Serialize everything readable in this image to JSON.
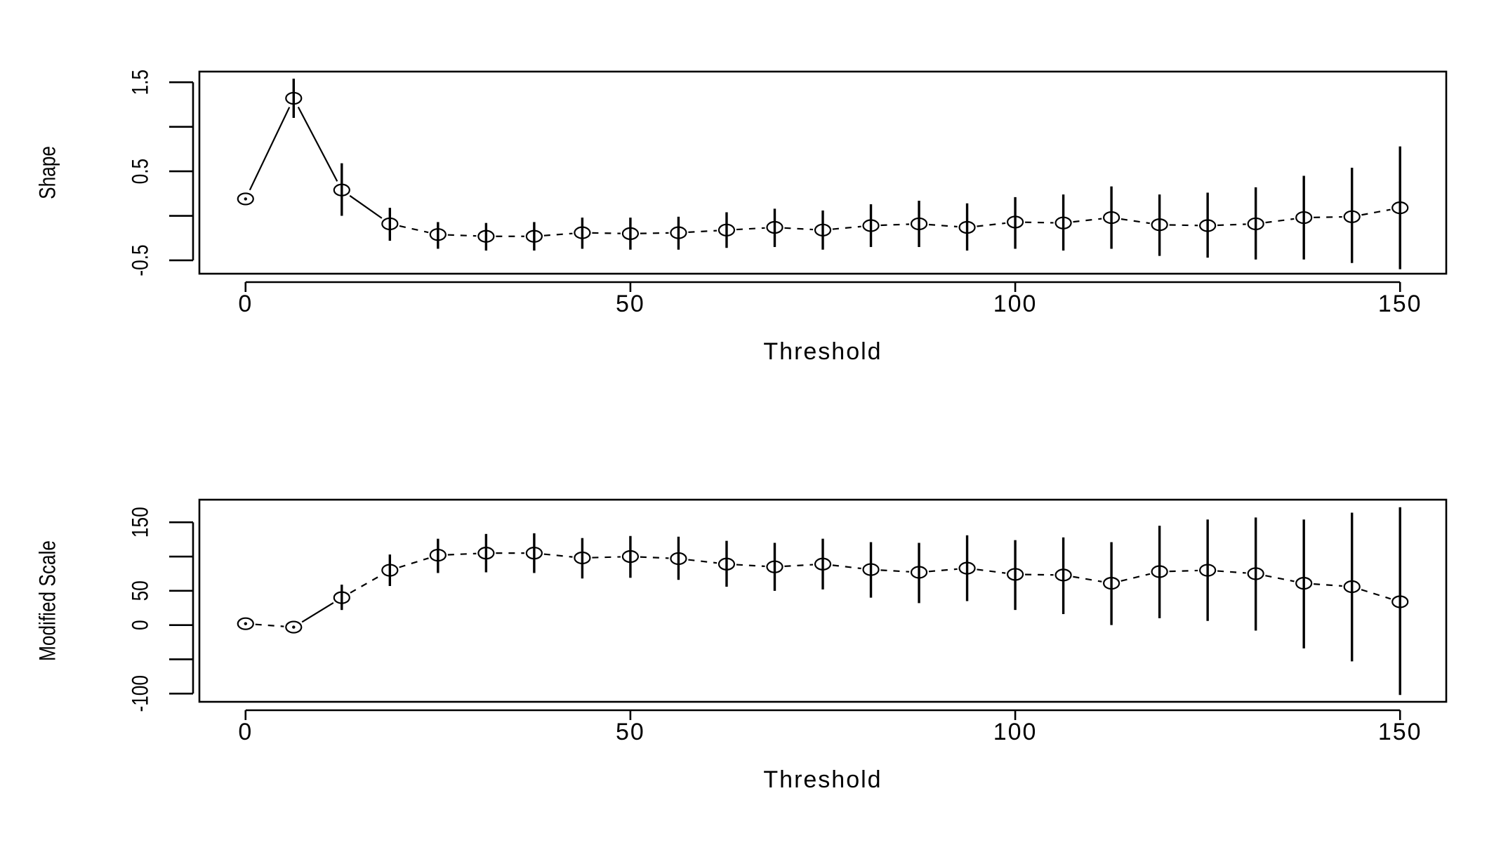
{
  "chart_data": [
    {
      "type": "scatter",
      "ylabel": "Shape",
      "xlabel": "Threshold",
      "xlim": [
        -6,
        156
      ],
      "ylim": [
        -0.65,
        1.62
      ],
      "xticks": [
        0,
        50,
        100,
        150
      ],
      "xtick_labels": [
        "0",
        "50",
        "100",
        "150"
      ],
      "yticks": [
        -0.5,
        0,
        0.5,
        1.0,
        1.5
      ],
      "ytick_labels": [
        "-0.5",
        "",
        "0.5",
        "",
        "1.5"
      ],
      "series": [
        {
          "x": [
            0,
            6.25,
            12.5,
            18.75,
            25,
            31.25,
            37.5,
            43.75,
            50,
            56.25,
            62.5,
            68.75,
            75,
            81.25,
            87.5,
            93.75,
            100,
            106.25,
            112.5,
            118.75,
            125,
            131.25,
            137.5,
            143.75,
            150
          ],
          "y": [
            0.19,
            1.32,
            0.29,
            -0.09,
            -0.21,
            -0.23,
            -0.23,
            -0.19,
            -0.2,
            -0.19,
            -0.16,
            -0.13,
            -0.16,
            -0.11,
            -0.09,
            -0.13,
            -0.07,
            -0.08,
            -0.02,
            -0.1,
            -0.11,
            -0.09,
            -0.02,
            -0.01,
            0.09
          ],
          "lower": [
            0.19,
            1.1,
            0.0,
            -0.28,
            -0.37,
            -0.39,
            -0.39,
            -0.37,
            -0.38,
            -0.38,
            -0.36,
            -0.35,
            -0.38,
            -0.35,
            -0.35,
            -0.39,
            -0.37,
            -0.39,
            -0.37,
            -0.45,
            -0.47,
            -0.49,
            -0.49,
            -0.53,
            -0.6
          ],
          "upper": [
            0.19,
            1.54,
            0.59,
            0.09,
            -0.07,
            -0.08,
            -0.07,
            -0.02,
            -0.02,
            -0.01,
            0.04,
            0.08,
            0.06,
            0.13,
            0.17,
            0.14,
            0.21,
            0.24,
            0.33,
            0.24,
            0.26,
            0.32,
            0.45,
            0.54,
            0.78
          ]
        }
      ]
    },
    {
      "type": "scatter",
      "ylabel": "Modified Scale",
      "xlabel": "Threshold",
      "xlim": [
        -6,
        156
      ],
      "ylim": [
        -112,
        183
      ],
      "xticks": [
        0,
        50,
        100,
        150
      ],
      "xtick_labels": [
        "0",
        "50",
        "100",
        "150"
      ],
      "yticks": [
        -100,
        -50,
        0,
        50,
        100,
        150
      ],
      "ytick_labels": [
        "-100",
        "",
        "0",
        "50",
        "",
        "150"
      ],
      "series": [
        {
          "x": [
            0,
            6.25,
            12.5,
            18.75,
            25,
            31.25,
            37.5,
            43.75,
            50,
            56.25,
            62.5,
            68.75,
            75,
            81.25,
            87.5,
            93.75,
            100,
            106.25,
            112.5,
            118.75,
            125,
            131.25,
            137.5,
            143.75,
            150
          ],
          "y": [
            2,
            -3,
            40,
            80,
            102,
            105,
            105,
            98,
            100,
            97,
            89,
            85,
            89,
            81,
            77,
            83,
            74,
            73,
            61,
            78,
            80,
            75,
            61,
            56,
            34
          ],
          "lower": [
            2,
            -3,
            22,
            57,
            76,
            77,
            76,
            68,
            69,
            66,
            56,
            50,
            52,
            40,
            32,
            35,
            22,
            16,
            0,
            10,
            6,
            -8,
            -34,
            -53,
            -102
          ],
          "upper": [
            2,
            -3,
            59,
            103,
            126,
            133,
            134,
            127,
            130,
            129,
            123,
            120,
            126,
            121,
            120,
            131,
            124,
            128,
            121,
            145,
            154,
            157,
            154,
            164,
            172
          ]
        }
      ]
    }
  ]
}
